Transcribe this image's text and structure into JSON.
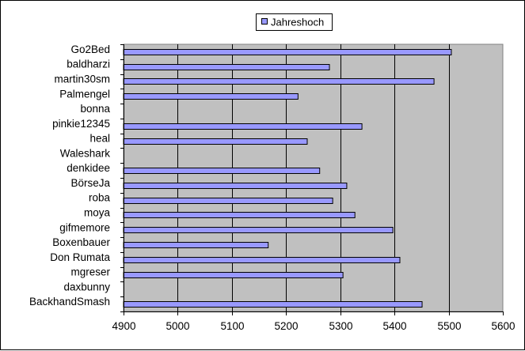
{
  "chart_data": {
    "type": "bar",
    "orientation": "horizontal",
    "categories": [
      "Go2Bed",
      "baldharzi",
      "martin30sm",
      "Palmengel",
      "bonna",
      "pinkie12345",
      "heal",
      "Waleshark",
      "denkidee",
      "BörseJa",
      "roba",
      "moya",
      "gifmemore",
      "Boxenbauer",
      "Don Rumata",
      "mgreser",
      "daxbunny",
      "BackhandSmash"
    ],
    "series": [
      {
        "name": "Jahreshoch",
        "values": [
          5505,
          5280,
          5473,
          5222,
          null,
          5340,
          5239,
          null,
          5262,
          5312,
          5286,
          5327,
          5397,
          5167,
          5410,
          5305,
          null,
          5451
        ],
        "color": "#9999ff"
      }
    ],
    "xlim": [
      4900,
      5600
    ],
    "xticks": [
      4900,
      5000,
      5100,
      5200,
      5300,
      5400,
      5500,
      5600
    ],
    "xlabel": "",
    "ylabel": "",
    "title": "",
    "grid": true,
    "legend_position": "top-center",
    "plot_background": "#c0c0c0",
    "gridline_color": "#000000"
  }
}
